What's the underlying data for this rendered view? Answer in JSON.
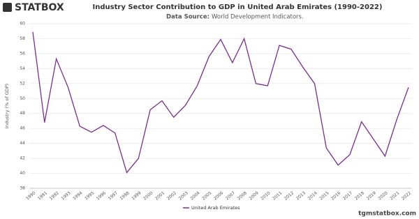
{
  "brand": "STATBOX",
  "footer": "tgmstatbox.com",
  "chart_data": {
    "type": "line",
    "title": "Industry Sector Contribution to GDP in United Arab Emirates (1990-2022)",
    "source_label": "Data Source:",
    "source": "World Development Indicators.",
    "y_label": "Industry (% of GDP)",
    "categories": [
      "1990",
      "1991",
      "1992",
      "1993",
      "1994",
      "1995",
      "1996",
      "1997",
      "1998",
      "1999",
      "2000",
      "2001",
      "2002",
      "2003",
      "2004",
      "2005",
      "2006",
      "2007",
      "2008",
      "2009",
      "2010",
      "2011",
      "2012",
      "2013",
      "2014",
      "2015",
      "2016",
      "2017",
      "2018",
      "2019",
      "2020",
      "2021",
      "2022"
    ],
    "series": [
      {
        "name": "United Arab Emirates",
        "color": "#7b2d8e",
        "values": [
          58.9,
          46.8,
          55.3,
          51.5,
          46.3,
          45.5,
          46.4,
          45.4,
          40.1,
          42.0,
          48.5,
          49.7,
          47.5,
          49.1,
          51.7,
          55.6,
          57.9,
          54.8,
          58.0,
          52.0,
          51.7,
          57.1,
          56.6,
          54.2,
          52.0,
          43.4,
          41.1,
          42.5,
          46.9,
          44.6,
          42.3,
          47.2,
          51.5
        ]
      }
    ],
    "ylim": [
      38,
      60
    ],
    "yticks": [
      38,
      40,
      42,
      44,
      46,
      48,
      50,
      52,
      54,
      56,
      58,
      60
    ],
    "grid": true
  }
}
